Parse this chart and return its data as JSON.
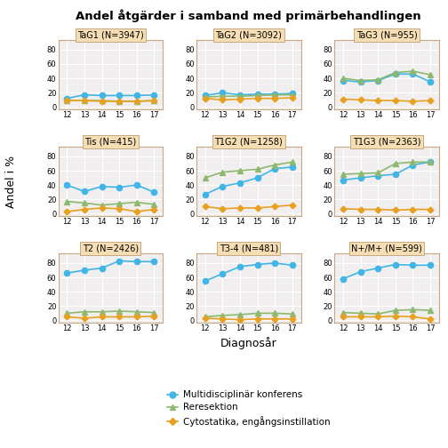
{
  "title": "Andel åtgärder i samband med primärbehandlingen",
  "xlabel": "Diagnosår",
  "ylabel": "Andel i %",
  "x_ticks": [
    12,
    13,
    14,
    15,
    16,
    17
  ],
  "subplots": [
    {
      "label": "TaG1 (N=3947)",
      "multidisc": [
        12,
        17,
        16,
        16,
        16,
        17
      ],
      "reresektion": [
        9,
        9,
        9,
        8,
        8,
        9
      ],
      "cytostatika": [
        9,
        9,
        8,
        8,
        8,
        9
      ]
    },
    {
      "label": "TaG2 (N=3092)",
      "multidisc": [
        16,
        20,
        17,
        18,
        18,
        19
      ],
      "reresektion": [
        14,
        15,
        15,
        16,
        17,
        17
      ],
      "cytostatika": [
        12,
        10,
        11,
        12,
        12,
        13
      ]
    },
    {
      "label": "TaG3 (N=955)",
      "multidisc": [
        37,
        35,
        37,
        46,
        46,
        35
      ],
      "reresektion": [
        40,
        37,
        38,
        48,
        50,
        45
      ],
      "cytostatika": [
        11,
        10,
        9,
        9,
        8,
        9
      ]
    },
    {
      "label": "Tis (N=415)",
      "multidisc": [
        40,
        31,
        38,
        37,
        40,
        30
      ],
      "reresektion": [
        17,
        15,
        12,
        14,
        16,
        13
      ],
      "cytostatika": [
        3,
        6,
        8,
        7,
        3,
        6
      ]
    },
    {
      "label": "T1G2 (N=1258)",
      "multidisc": [
        27,
        38,
        43,
        50,
        63,
        65
      ],
      "reresektion": [
        50,
        58,
        60,
        62,
        68,
        72
      ],
      "cytostatika": [
        10,
        7,
        8,
        8,
        10,
        12
      ]
    },
    {
      "label": "T1G3 (N=2363)",
      "multidisc": [
        47,
        50,
        53,
        55,
        68,
        72
      ],
      "reresektion": [
        55,
        56,
        57,
        70,
        72,
        72
      ],
      "cytostatika": [
        7,
        6,
        6,
        5,
        6,
        6
      ]
    },
    {
      "label": "T2 (N=2426)",
      "multidisc": [
        66,
        70,
        73,
        83,
        82,
        82
      ],
      "reresektion": [
        10,
        12,
        12,
        13,
        12,
        11
      ],
      "cytostatika": [
        5,
        3,
        5,
        5,
        5,
        6
      ]
    },
    {
      "label": "T3-4 (N=481)",
      "multidisc": [
        55,
        65,
        75,
        78,
        80,
        77
      ],
      "reresektion": [
        5,
        7,
        8,
        10,
        10,
        9
      ],
      "cytostatika": [
        3,
        2,
        1,
        2,
        2,
        2
      ]
    },
    {
      "label": "N+/M+ (N=599)",
      "multidisc": [
        58,
        68,
        73,
        78,
        77,
        77
      ],
      "reresektion": [
        11,
        10,
        9,
        14,
        15,
        14
      ],
      "cytostatika": [
        5,
        5,
        5,
        6,
        5,
        2
      ]
    }
  ],
  "color_multidisc": "#41B6E6",
  "color_reresektion": "#8DB870",
  "color_cytostatika": "#E8A020",
  "panel_bg": "#F5DEB3",
  "plot_bg": "#F0EEEE",
  "grid_color": "#FFFFFF",
  "border_color": "#C8A882",
  "legend_labels": [
    "Multidisciplinär konferens",
    "Reresektion",
    "Cytostatika, engångsinstillation"
  ]
}
